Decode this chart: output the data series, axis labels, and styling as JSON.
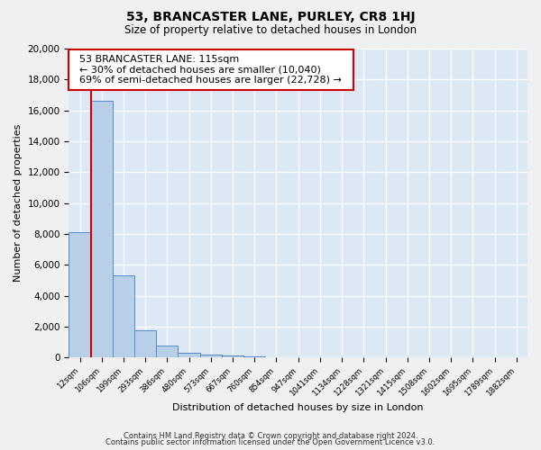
{
  "title": "53, BRANCASTER LANE, PURLEY, CR8 1HJ",
  "subtitle": "Size of property relative to detached houses in London",
  "xlabel": "Distribution of detached houses by size in London",
  "ylabel": "Number of detached properties",
  "bar_color": "#b8cfe8",
  "bar_edge_color": "#5588cc",
  "background_color": "#dde8f5",
  "grid_color": "#ffffff",
  "vline_color": "#cc0000",
  "annotation_line1": "53 BRANCASTER LANE: 115sqm",
  "annotation_line2": "← 30% of detached houses are smaller (10,040)",
  "annotation_line3": "69% of semi-detached houses are larger (22,728) →",
  "bins": [
    "12sqm",
    "106sqm",
    "199sqm",
    "293sqm",
    "386sqm",
    "480sqm",
    "573sqm",
    "667sqm",
    "760sqm",
    "854sqm",
    "947sqm",
    "1041sqm",
    "1134sqm",
    "1228sqm",
    "1321sqm",
    "1415sqm",
    "1508sqm",
    "1602sqm",
    "1695sqm",
    "1789sqm",
    "1882sqm"
  ],
  "values": [
    8100,
    16600,
    5300,
    1750,
    780,
    300,
    200,
    120,
    100,
    0,
    0,
    0,
    0,
    0,
    0,
    0,
    0,
    0,
    0,
    0,
    0
  ],
  "ylim": [
    0,
    20000
  ],
  "yticks": [
    0,
    2000,
    4000,
    6000,
    8000,
    10000,
    12000,
    14000,
    16000,
    18000,
    20000
  ],
  "vline_bin_index": 1,
  "footnote1": "Contains HM Land Registry data © Crown copyright and database right 2024.",
  "footnote2": "Contains public sector information licensed under the Open Government Licence v3.0."
}
